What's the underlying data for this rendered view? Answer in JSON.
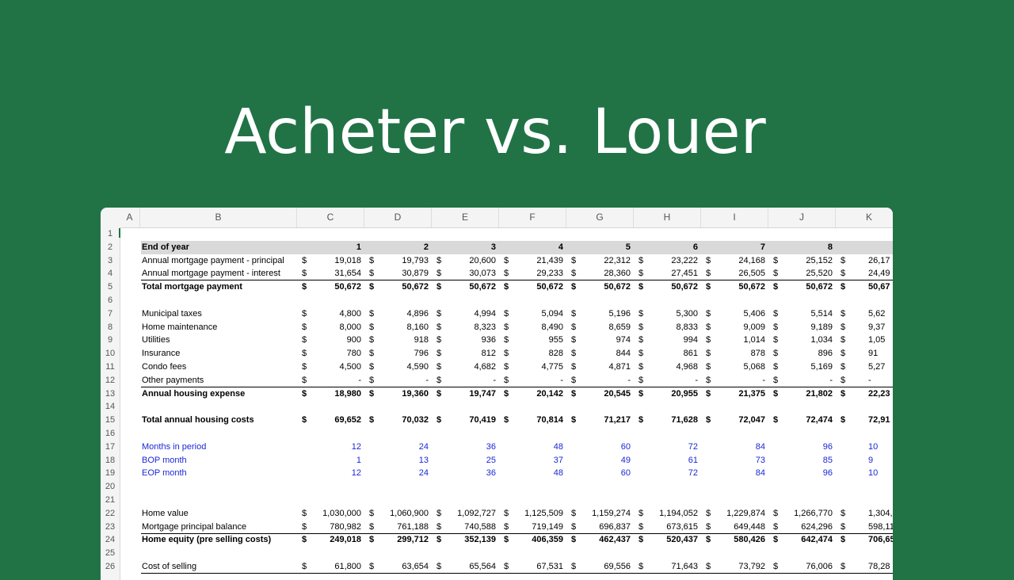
{
  "title": "Acheter vs. Louer",
  "columns": [
    "A",
    "B",
    "C",
    "D",
    "E",
    "F",
    "G",
    "H",
    "I",
    "J",
    "K"
  ],
  "currency": "$",
  "rows": [
    {
      "n": "1",
      "label": "",
      "values": null
    },
    {
      "n": "2",
      "label": "End of year",
      "values": [
        "1",
        "2",
        "3",
        "4",
        "5",
        "6",
        "7",
        "8",
        ""
      ],
      "style": "header"
    },
    {
      "n": "3",
      "label": "Annual mortgage payment - principal",
      "values": [
        "19,018",
        "19,793",
        "20,600",
        "21,439",
        "22,312",
        "23,222",
        "24,168",
        "25,152",
        "26,17"
      ],
      "dollar": true
    },
    {
      "n": "4",
      "label": "Annual mortgage payment - interest",
      "values": [
        "31,654",
        "30,879",
        "30,073",
        "29,233",
        "28,360",
        "27,451",
        "26,505",
        "25,520",
        "24,49"
      ],
      "dollar": true,
      "underline": true
    },
    {
      "n": "5",
      "label": "Total mortgage payment",
      "values": [
        "50,672",
        "50,672",
        "50,672",
        "50,672",
        "50,672",
        "50,672",
        "50,672",
        "50,672",
        "50,67"
      ],
      "dollar": true,
      "style": "bold"
    },
    {
      "n": "6",
      "label": "",
      "values": null
    },
    {
      "n": "7",
      "label": "Municipal taxes",
      "values": [
        "4,800",
        "4,896",
        "4,994",
        "5,094",
        "5,196",
        "5,300",
        "5,406",
        "5,514",
        "5,62"
      ],
      "dollar": true
    },
    {
      "n": "8",
      "label": "Home maintenance",
      "values": [
        "8,000",
        "8,160",
        "8,323",
        "8,490",
        "8,659",
        "8,833",
        "9,009",
        "9,189",
        "9,37"
      ],
      "dollar": true
    },
    {
      "n": "9",
      "label": "Utilities",
      "values": [
        "900",
        "918",
        "936",
        "955",
        "974",
        "994",
        "1,014",
        "1,034",
        "1,05"
      ],
      "dollar": true
    },
    {
      "n": "10",
      "label": "Insurance",
      "values": [
        "780",
        "796",
        "812",
        "828",
        "844",
        "861",
        "878",
        "896",
        "91"
      ],
      "dollar": true
    },
    {
      "n": "11",
      "label": "Condo fees",
      "values": [
        "4,500",
        "4,590",
        "4,682",
        "4,775",
        "4,871",
        "4,968",
        "5,068",
        "5,169",
        "5,27"
      ],
      "dollar": true
    },
    {
      "n": "12",
      "label": "Other payments",
      "values": [
        "-",
        "-",
        "-",
        "-",
        "-",
        "-",
        "-",
        "-",
        "-"
      ],
      "dollar": true,
      "underline": true
    },
    {
      "n": "13",
      "label": "Annual housing expense",
      "values": [
        "18,980",
        "19,360",
        "19,747",
        "20,142",
        "20,545",
        "20,955",
        "21,375",
        "21,802",
        "22,23"
      ],
      "dollar": true,
      "style": "bold"
    },
    {
      "n": "14",
      "label": "",
      "values": null
    },
    {
      "n": "15",
      "label": "Total annual housing costs",
      "values": [
        "69,652",
        "70,032",
        "70,419",
        "70,814",
        "71,217",
        "71,628",
        "72,047",
        "72,474",
        "72,91"
      ],
      "dollar": true,
      "style": "bold"
    },
    {
      "n": "16",
      "label": "",
      "values": null
    },
    {
      "n": "17",
      "label": "Months in period",
      "values": [
        "12",
        "24",
        "36",
        "48",
        "60",
        "72",
        "84",
        "96",
        "10"
      ],
      "style": "blue"
    },
    {
      "n": "18",
      "label": "BOP month",
      "values": [
        "1",
        "13",
        "25",
        "37",
        "49",
        "61",
        "73",
        "85",
        "9"
      ],
      "style": "blue"
    },
    {
      "n": "19",
      "label": "EOP month",
      "values": [
        "12",
        "24",
        "36",
        "48",
        "60",
        "72",
        "84",
        "96",
        "10"
      ],
      "style": "blue"
    },
    {
      "n": "20",
      "label": "",
      "values": null
    },
    {
      "n": "21",
      "label": "",
      "values": null
    },
    {
      "n": "22",
      "label": "Home value",
      "values": [
        "1,030,000",
        "1,060,900",
        "1,092,727",
        "1,125,509",
        "1,159,274",
        "1,194,052",
        "1,229,874",
        "1,266,770",
        "1,304,77"
      ],
      "dollar": true
    },
    {
      "n": "23",
      "label": "Mortgage principal balance",
      "values": [
        "780,982",
        "761,188",
        "740,588",
        "719,149",
        "696,837",
        "673,615",
        "649,448",
        "624,296",
        "598,11"
      ],
      "dollar": true,
      "underline": true
    },
    {
      "n": "24",
      "label": "Home equity (pre selling costs)",
      "values": [
        "249,018",
        "299,712",
        "352,139",
        "406,359",
        "462,437",
        "520,437",
        "580,426",
        "642,474",
        "706,65"
      ],
      "dollar": true,
      "style": "bold"
    },
    {
      "n": "25",
      "label": "",
      "values": null
    },
    {
      "n": "26",
      "label": "Cost of selling",
      "values": [
        "61,800",
        "63,654",
        "65,564",
        "67,531",
        "69,556",
        "71,643",
        "73,792",
        "76,006",
        "78,28"
      ],
      "dollar": true,
      "underline": true
    }
  ]
}
